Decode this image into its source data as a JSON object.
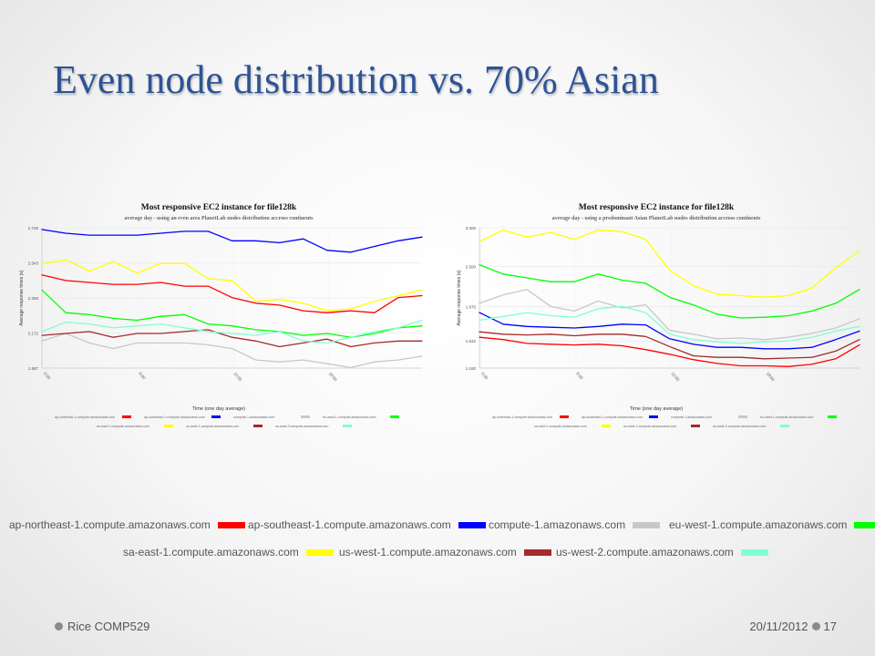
{
  "slide": {
    "title": "Even node distribution vs. 70% Asian",
    "footer_left": "Rice COMP529",
    "footer_date": "20/11/2012",
    "footer_page": "17"
  },
  "legend": {
    "row1": [
      {
        "name": "ap-northeast-1.compute.amazonaws.com",
        "color": "#ff0000"
      },
      {
        "name": "ap-southeast-1.compute.amazonaws.com",
        "color": "#0000ff"
      },
      {
        "name": "compute-1.amazonaws.com",
        "color": "#c8c8c8"
      },
      {
        "name": "eu-west-1.compute.amazonaws.com",
        "color": "#00ff00"
      }
    ],
    "row2": [
      {
        "name": "sa-east-1.compute.amazonaws.com",
        "color": "#ffff00"
      },
      {
        "name": "us-west-1.compute.amazonaws.com",
        "color": "#a52a2a"
      },
      {
        "name": "us-west-2.compute.amazonaws.com",
        "color": "#7fffd4"
      }
    ]
  },
  "chart_data": [
    {
      "type": "line",
      "title": "Most responsive EC2 instance for file128k",
      "subtitle": "average day - using an even area PlanetLab nodes distribution accross continents",
      "xlabel": "Time (one day average)",
      "ylabel": "Average response times (s)",
      "yticks": [
        "1.987",
        "2.172",
        "2.358",
        "2.543",
        "2.729"
      ],
      "ylim": [
        1.987,
        2.729
      ],
      "xticks": [
        "0:00",
        "6:00",
        "12:00",
        "18:00"
      ],
      "xlim": [
        0,
        24
      ],
      "x": [
        0,
        1.5,
        3,
        4.5,
        6,
        7.5,
        9,
        10.5,
        12,
        13.5,
        15,
        16.5,
        18,
        19.5,
        21,
        22.5,
        24
      ],
      "series": [
        {
          "name": "ap-northeast-1.compute.amazonaws.com",
          "color": "#ff0000",
          "values": [
            2.48,
            2.45,
            2.44,
            2.43,
            2.43,
            2.44,
            2.42,
            2.42,
            2.36,
            2.33,
            2.32,
            2.29,
            2.28,
            2.29,
            2.28,
            2.36,
            2.37
          ]
        },
        {
          "name": "ap-southeast-1.compute.amazonaws.com",
          "color": "#0000ff",
          "values": [
            2.72,
            2.7,
            2.69,
            2.69,
            2.69,
            2.7,
            2.71,
            2.71,
            2.66,
            2.66,
            2.65,
            2.67,
            2.61,
            2.6,
            2.63,
            2.66,
            2.68
          ]
        },
        {
          "name": "compute-1.amazonaws.com",
          "color": "#c8c8c8",
          "values": [
            2.13,
            2.17,
            2.12,
            2.09,
            2.12,
            2.12,
            2.12,
            2.11,
            2.09,
            2.03,
            2.02,
            2.03,
            2.01,
            1.99,
            2.02,
            2.03,
            2.05
          ]
        },
        {
          "name": "eu-west-1.compute.amazonaws.com",
          "color": "#00ff00",
          "values": [
            2.4,
            2.28,
            2.27,
            2.25,
            2.24,
            2.26,
            2.27,
            2.22,
            2.21,
            2.19,
            2.18,
            2.16,
            2.17,
            2.15,
            2.17,
            2.2,
            2.21
          ]
        },
        {
          "name": "sa-east-1.compute.amazonaws.com",
          "color": "#ffff00",
          "values": [
            2.54,
            2.56,
            2.5,
            2.55,
            2.49,
            2.54,
            2.54,
            2.46,
            2.45,
            2.34,
            2.35,
            2.33,
            2.29,
            2.3,
            2.34,
            2.37,
            2.4
          ]
        },
        {
          "name": "us-west-1.compute.amazonaws.com",
          "color": "#a52a2a",
          "values": [
            2.16,
            2.17,
            2.18,
            2.15,
            2.17,
            2.17,
            2.18,
            2.19,
            2.15,
            2.13,
            2.1,
            2.12,
            2.14,
            2.1,
            2.12,
            2.13,
            2.13
          ]
        },
        {
          "name": "us-west-2.compute.amazonaws.com",
          "color": "#7fffd4",
          "values": [
            2.18,
            2.23,
            2.22,
            2.2,
            2.21,
            2.22,
            2.2,
            2.18,
            2.17,
            2.16,
            2.18,
            2.13,
            2.12,
            2.15,
            2.18,
            2.2,
            2.24
          ]
        }
      ]
    },
    {
      "type": "line",
      "title": "Most responsive EC2 instance for file128k",
      "subtitle": "average day - using a predominant Asian PlanetLab nodes distribution accross continents",
      "xlabel": "Time (one day average)",
      "ylabel": "Average response times (s)",
      "yticks": [
        "1.180",
        "1.532",
        "1.975",
        "2.500",
        "3.000"
      ],
      "ylim": [
        1.18,
        3.0
      ],
      "xticks": [
        "0:00",
        "6:00",
        "12:00",
        "18:00"
      ],
      "xlim": [
        0,
        24
      ],
      "x": [
        0,
        1.5,
        3,
        4.5,
        6,
        7.5,
        9,
        10.5,
        12,
        13.5,
        15,
        16.5,
        18,
        19.5,
        21,
        22.5,
        24
      ],
      "series": [
        {
          "name": "ap-northeast-1.compute.amazonaws.com",
          "color": "#ff0000",
          "values": [
            1.58,
            1.55,
            1.5,
            1.49,
            1.48,
            1.49,
            1.47,
            1.42,
            1.36,
            1.29,
            1.24,
            1.21,
            1.21,
            1.2,
            1.23,
            1.3,
            1.48
          ]
        },
        {
          "name": "ap-southeast-1.compute.amazonaws.com",
          "color": "#0000ff",
          "values": [
            1.9,
            1.75,
            1.72,
            1.71,
            1.7,
            1.72,
            1.75,
            1.74,
            1.56,
            1.49,
            1.45,
            1.45,
            1.43,
            1.43,
            1.45,
            1.55,
            1.66
          ]
        },
        {
          "name": "compute-1.amazonaws.com",
          "color": "#c8c8c8",
          "values": [
            2.02,
            2.13,
            2.2,
            1.98,
            1.92,
            2.05,
            1.96,
            2.0,
            1.67,
            1.62,
            1.56,
            1.57,
            1.55,
            1.58,
            1.63,
            1.7,
            1.82
          ]
        },
        {
          "name": "eu-west-1.compute.amazonaws.com",
          "color": "#00ff00",
          "values": [
            2.52,
            2.4,
            2.35,
            2.3,
            2.3,
            2.4,
            2.32,
            2.28,
            2.1,
            2.0,
            1.88,
            1.83,
            1.84,
            1.86,
            1.92,
            2.02,
            2.2
          ]
        },
        {
          "name": "sa-east-1.compute.amazonaws.com",
          "color": "#ffff00",
          "values": [
            2.82,
            2.97,
            2.88,
            2.94,
            2.85,
            2.97,
            2.95,
            2.85,
            2.45,
            2.25,
            2.14,
            2.12,
            2.1,
            2.12,
            2.22,
            2.48,
            2.7
          ]
        },
        {
          "name": "us-west-1.compute.amazonaws.com",
          "color": "#a52a2a",
          "values": [
            1.65,
            1.62,
            1.61,
            1.62,
            1.6,
            1.62,
            1.62,
            1.59,
            1.46,
            1.34,
            1.32,
            1.32,
            1.3,
            1.31,
            1.32,
            1.4,
            1.55
          ]
        },
        {
          "name": "us-west-2.compute.amazonaws.com",
          "color": "#7fffd4",
          "values": [
            1.8,
            1.85,
            1.9,
            1.86,
            1.84,
            1.95,
            1.98,
            1.9,
            1.62,
            1.55,
            1.52,
            1.5,
            1.52,
            1.53,
            1.58,
            1.66,
            1.72
          ]
        }
      ]
    }
  ]
}
